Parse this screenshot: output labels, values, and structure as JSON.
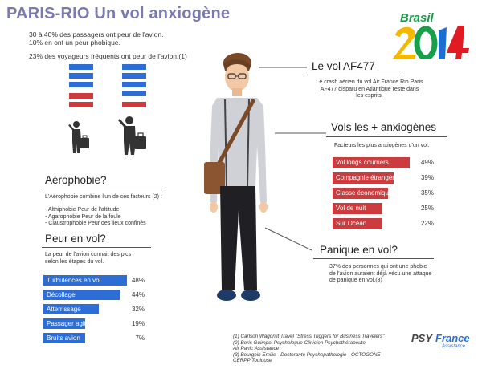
{
  "header": {
    "title": "PARIS-RIO Un vol anxiogène",
    "intro_line1": "30 à 40% des passagers ont peur de l'avion.",
    "intro_line2": "10% en ont un peur phobique.",
    "intro_line3": "23% des voyageurs fréquents ont peur de l'avion.(1)"
  },
  "logo": {
    "brand": "Brasil",
    "year": "2014",
    "colors": [
      "#e21b23",
      "#f5b800",
      "#16a04a",
      "#1c6fd0"
    ]
  },
  "colors": {
    "blue": "#2d6dd6",
    "red": "#cc3b3d",
    "title": "#7a7ab0"
  },
  "stacks": [
    {
      "bars": [
        "blue",
        "blue",
        "blue",
        "red",
        "red"
      ]
    },
    {
      "bars": [
        "blue",
        "blue",
        "blue",
        "blue",
        "red"
      ]
    }
  ],
  "af477": {
    "heading": "Le vol AF477",
    "text_line1": "Le crash aérien du vol Air France Rio Paris",
    "text_line2": "AF477 disparu en Atlantique  reste dans",
    "text_line3": "les esprits."
  },
  "anxiogenes": {
    "heading": "Vols les + anxiogènes",
    "subtitle": "Facteurs les plus anxiogènes d'un vol.",
    "items": [
      {
        "label": "Vol longs  courriers",
        "value": "49%",
        "share": 0.49
      },
      {
        "label": "Compagnie étrangère",
        "value": "39%",
        "share": 0.39
      },
      {
        "label": "Classe économique",
        "value": "35%",
        "share": 0.35
      },
      {
        "label": "Vol de nuit",
        "value": "25%",
        "share": 0.25
      },
      {
        "label": "Sur Océan",
        "value": "22%",
        "share": 0.22
      }
    ]
  },
  "aerophobie": {
    "heading": "Aérophobie?",
    "intro": "L'Aérophobie combine l'un de ces facteurs (2) :",
    "items": [
      "- Althiphobie Peur de l'altitude",
      "- Agarophobie Peur de la foule",
      "- Claustrophobie Peur des lieux confinés"
    ]
  },
  "peur": {
    "heading": "Peur en vol?",
    "text_line1": "La peur de l'avion connait des pics",
    "text_line2": "selon les étapes du vol.",
    "items": [
      {
        "label": "Turbulences en vol",
        "value": "48%",
        "share": 0.48
      },
      {
        "label": "Décollage",
        "value": "44%",
        "share": 0.44
      },
      {
        "label": "Atterrissage",
        "value": "32%",
        "share": 0.32
      },
      {
        "label": "Passager agité",
        "value": "19%",
        "share": 0.19
      },
      {
        "label": "Bruits avion",
        "value": "7%",
        "share": 0.07
      }
    ]
  },
  "panique": {
    "heading": "Panique en vol?",
    "text_line1": "37% des personnes qui ont une phobie",
    "text_line2": "de l'avion auraient déjà vécu une attaque",
    "text_line3": "de panique en vol.(3)"
  },
  "footnotes": {
    "line1": "(1) Carlson Wagonlit Travel \"Stress Triggers for Business Travelers\"",
    "line2": "(2) Boris Guimpel Psychologue Clinicien Psychothérapeute",
    "line3": "Air Panic Assistance",
    "line4": "(3) Bourgoin Emilie - Doctorante Psychopathologie - OCTOGONE-",
    "line5": "CERPP Toulouse"
  },
  "psy_logo": {
    "psy": "PSY",
    "france": "France",
    "assistance": "Assistance"
  }
}
